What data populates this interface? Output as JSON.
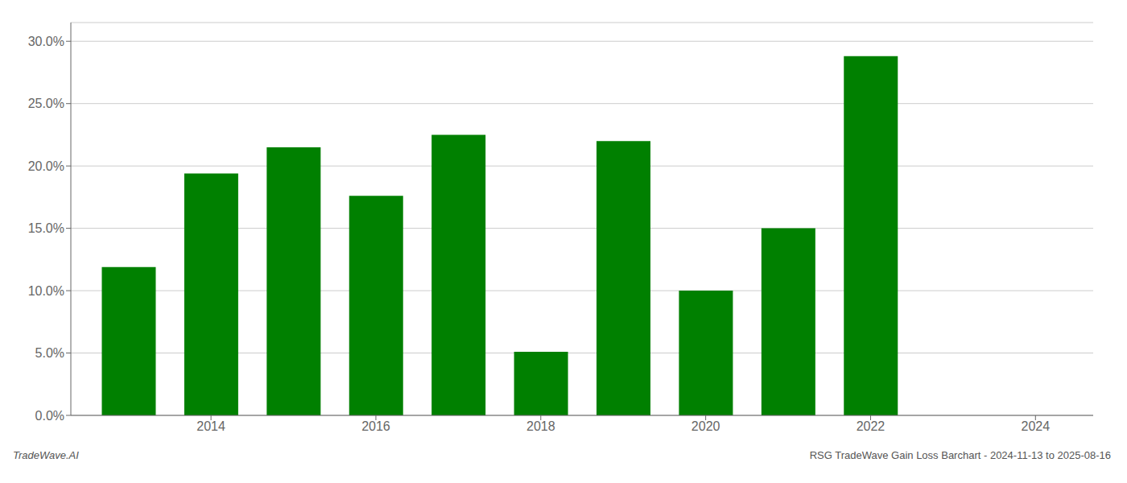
{
  "chart_data": {
    "type": "bar",
    "x": [
      2013,
      2014,
      2015,
      2016,
      2017,
      2018,
      2019,
      2020,
      2021,
      2022
    ],
    "values": [
      0.119,
      0.194,
      0.215,
      0.176,
      0.225,
      0.051,
      0.22,
      0.1,
      0.15,
      0.288
    ],
    "color": "#008000",
    "xlim": [
      2012.3,
      2024.7
    ],
    "xticks": [
      2014,
      2016,
      2018,
      2020,
      2022,
      2024
    ],
    "ylim": [
      0.0,
      0.315
    ],
    "yticks": [
      {
        "value": 0.0,
        "label": "0.0%"
      },
      {
        "value": 0.05,
        "label": "5.0%"
      },
      {
        "value": 0.1,
        "label": "10.0%"
      },
      {
        "value": 0.15,
        "label": "15.0%"
      },
      {
        "value": 0.2,
        "label": "20.0%"
      },
      {
        "value": 0.25,
        "label": "25.0%"
      },
      {
        "value": 0.3,
        "label": "30.0%"
      }
    ],
    "grid": true,
    "annotations": [
      "TradeWave.AI",
      "RSG TradeWave Gain Loss Barchart - 2024-11-13 to 2025-08-16"
    ]
  }
}
